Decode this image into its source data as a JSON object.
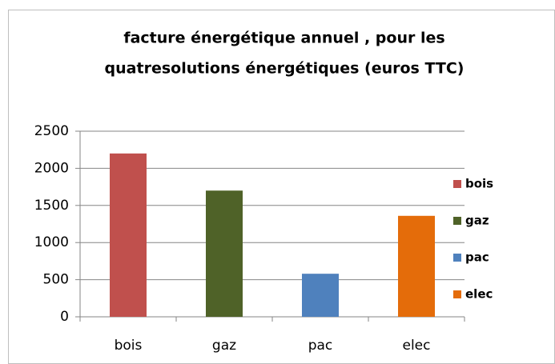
{
  "chart_data": {
    "type": "bar",
    "title": [
      "facture énergétique annuel , pour les",
      "quatresolutions énergétiques (euros TTC)"
    ],
    "categories": [
      "bois",
      "gaz",
      "pac",
      "elec"
    ],
    "values": [
      2200,
      1700,
      580,
      1360
    ],
    "colors": [
      "#c0504d",
      "#4f6228",
      "#4f81bd",
      "#e46c0a"
    ],
    "ylim": [
      0,
      2500
    ],
    "yticks": [
      0,
      500,
      1000,
      1500,
      2000,
      2500
    ],
    "grid": true,
    "legend": "right"
  }
}
